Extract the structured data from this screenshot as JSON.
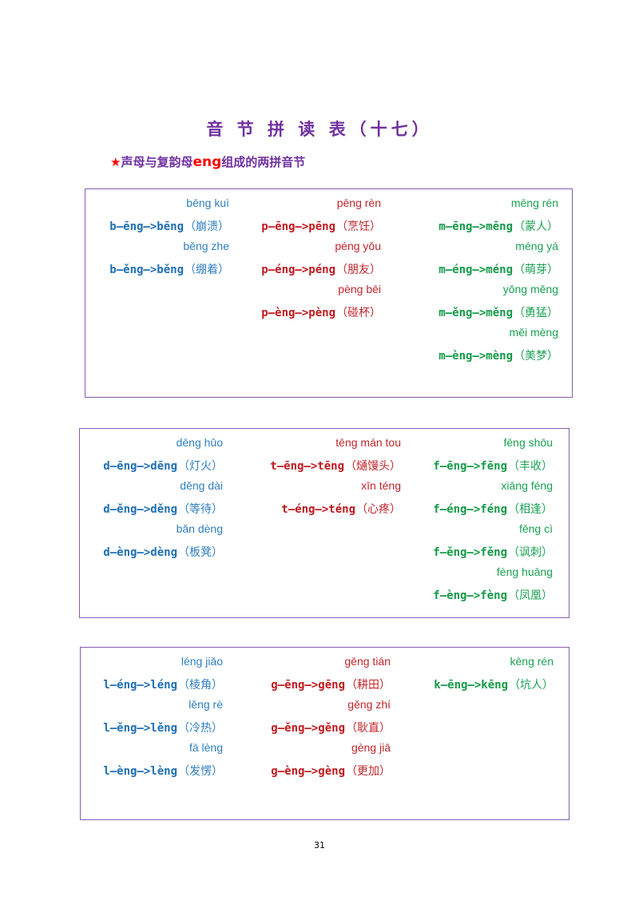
{
  "page": {
    "title": "音 节 拼 读 表（十七）",
    "subtitle_star": "★",
    "subtitle_pre": "声母与复韵母",
    "subtitle_eng": "eng",
    "subtitle_post": "组成的两拼音节",
    "page_number": "31"
  },
  "boxes": [
    {
      "columns": [
        {
          "color": "blue",
          "entries": [
            {
              "pinyin": "bēng kuì",
              "formula": "b—ēng—>bēng",
              "word": "（崩溃）"
            },
            {
              "pinyin": "běng zhe",
              "formula": "b—ěng—>běng",
              "word": "（绷着）"
            }
          ]
        },
        {
          "color": "red",
          "entries": [
            {
              "pinyin": "pēng rèn",
              "formula": "p—ēng—>pēng",
              "word": "（烹饪）"
            },
            {
              "pinyin": "péng yǒu",
              "formula": "p—éng—>péng",
              "word": "（朋友）"
            },
            {
              "pinyin": "pèng bēi",
              "formula": "p—èng—>pèng",
              "word": "（碰杯）"
            }
          ]
        },
        {
          "color": "green",
          "entries": [
            {
              "pinyin": "mēng rén",
              "formula": "m—ēng—>mēng",
              "word": "（蒙人）"
            },
            {
              "pinyin": "méng yá",
              "formula": "m—éng—>méng",
              "word": "（萌芽）"
            },
            {
              "pinyin": "yǒng měng",
              "formula": "m—ěng—>měng",
              "word": "（勇猛）"
            },
            {
              "pinyin": "měi mèng",
              "formula": "m—èng—>mèng",
              "word": "（美梦）"
            }
          ]
        }
      ]
    },
    {
      "columns": [
        {
          "color": "blue",
          "entries": [
            {
              "pinyin": "dēng hǔo",
              "formula": "d—ēng—>dēng",
              "word": "（灯火）"
            },
            {
              "pinyin": "děng dài",
              "formula": "d—ěng—>děng",
              "word": "（等待）"
            },
            {
              "pinyin": "bǎn dèng",
              "formula": "d—èng—>dèng",
              "word": "（板凳）"
            }
          ]
        },
        {
          "color": "red",
          "entries": [
            {
              "pinyin": "tēng mán tou",
              "formula": "t—ēng—>tēng",
              "word": "（熥馒头）"
            },
            {
              "pinyin": "xīn téng",
              "formula": "t—éng—>téng",
              "word": "（心疼）"
            }
          ]
        },
        {
          "color": "green",
          "entries": [
            {
              "pinyin": "fēng shōu",
              "formula": "f—ēng—>fēng",
              "word": "（丰收）"
            },
            {
              "pinyin": "xiāng féng",
              "formula": "f—éng—>féng",
              "word": "（相逢）"
            },
            {
              "pinyin": "fěng cì",
              "formula": "f—ěng—>fěng",
              "word": "（讽刺）"
            },
            {
              "pinyin": "fèng huāng",
              "formula": "f—èng—>fèng",
              "word": "（凤凰）"
            }
          ]
        }
      ]
    },
    {
      "columns": [
        {
          "color": "blue",
          "entries": [
            {
              "pinyin": "léng jiǎo",
              "formula": "l—éng—>léng",
              "word": "（棱角）"
            },
            {
              "pinyin": "lěng rè",
              "formula": "l—ěng—>lěng",
              "word": "（冷热）"
            },
            {
              "pinyin": "fā lèng",
              "formula": "l—èng—>lèng",
              "word": "（发愣）"
            }
          ]
        },
        {
          "color": "red",
          "entries": [
            {
              "pinyin": "gēng tián",
              "formula": "g—ēng—>gēng",
              "word": "（耕田）"
            },
            {
              "pinyin": "gěng zhí",
              "formula": "g—ěng—>gěng",
              "word": "（耿直）"
            },
            {
              "pinyin": "gèng jiā",
              "formula": "g—èng—>gèng",
              "word": "（更加）"
            }
          ]
        },
        {
          "color": "green",
          "entries": [
            {
              "pinyin": "kēng rén",
              "formula": "k—ēng—>kēng",
              "word": "（坑人）"
            }
          ]
        }
      ]
    }
  ]
}
